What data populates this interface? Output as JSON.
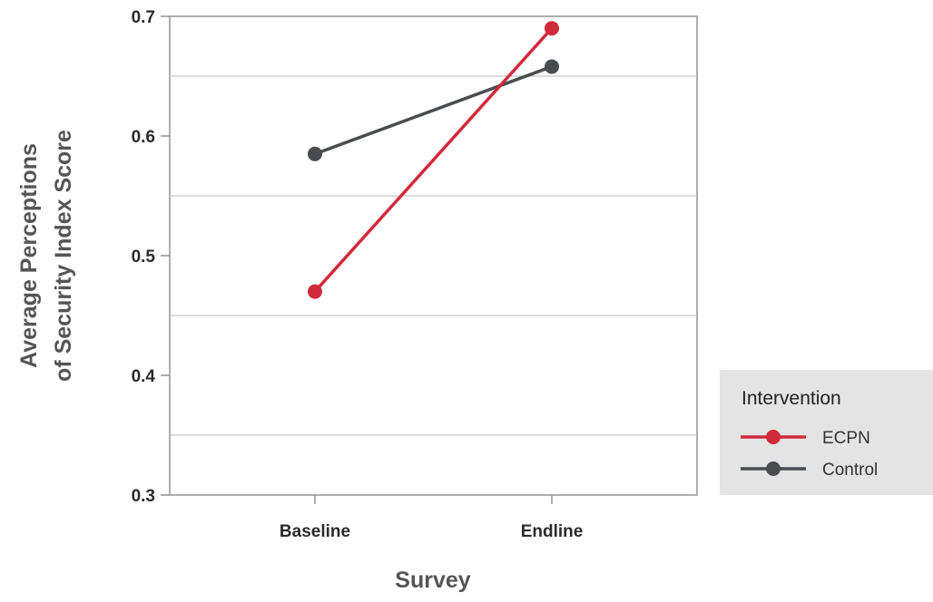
{
  "chart_data": {
    "type": "line",
    "xlabel": "Survey",
    "ylabel_line1": "Average Perceptions",
    "ylabel_line2": "of Security Index Score",
    "categories": [
      "Baseline",
      "Endline"
    ],
    "ylim": [
      0.3,
      0.7
    ],
    "yticks": [
      0.3,
      0.4,
      0.5,
      0.6,
      0.7
    ],
    "yticks_labels": [
      "0.3",
      "0.4",
      "0.5",
      "0.6",
      "0.7"
    ],
    "minor_gridlines": [
      0.35,
      0.45,
      0.55,
      0.65
    ],
    "grid": true,
    "legend": {
      "title": "Intervention",
      "placement": "right"
    },
    "series": [
      {
        "name": "ECPN",
        "values": [
          0.47,
          0.69
        ],
        "color": "#d12a3a"
      },
      {
        "name": "Control",
        "values": [
          0.585,
          0.658
        ],
        "color": "#4a4d50"
      }
    ]
  }
}
